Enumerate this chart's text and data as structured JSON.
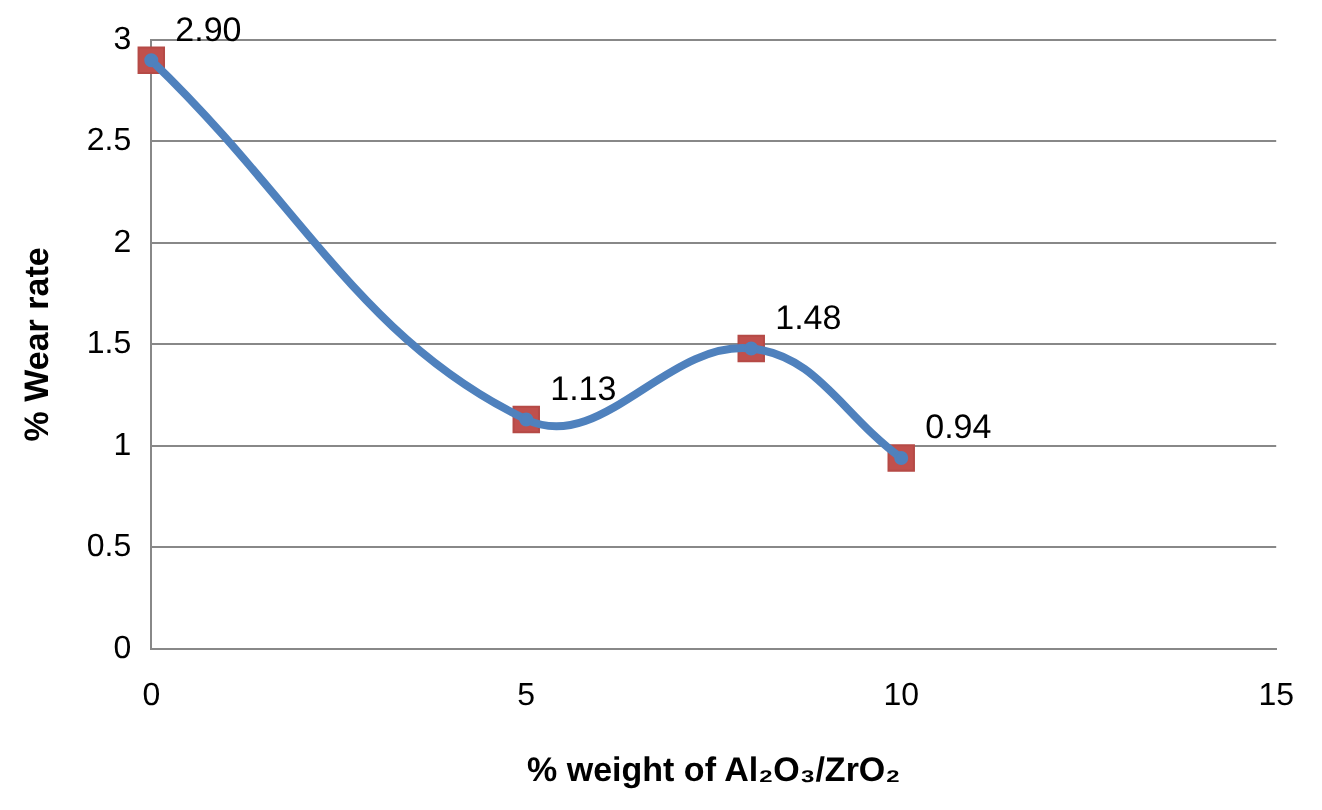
{
  "chart_data": {
    "type": "scatter",
    "xlabel": "% weight of Al₂O₃/ZrO₂",
    "ylabel": "% Wear rate",
    "x": [
      0,
      5,
      8,
      10
    ],
    "series": [
      {
        "type": "scatter",
        "color": "#c0504d",
        "marker": "square",
        "values": [
          2.9,
          1.13,
          1.48,
          0.94
        ]
      },
      {
        "type": "line",
        "color": "#4f81bd",
        "marker": "circle",
        "values": [
          2.9,
          1.13,
          1.48,
          0.94
        ],
        "value_labels": [
          "2.90",
          "1.13",
          "1.48",
          "0.94"
        ]
      }
    ],
    "xlim": [
      0,
      15
    ],
    "xticks": [
      0,
      5,
      10,
      15
    ],
    "ylim": [
      0,
      3
    ],
    "yticks": [
      0,
      0.5,
      1,
      1.5,
      2,
      2.5,
      3
    ],
    "grid": "y",
    "legend": false
  }
}
